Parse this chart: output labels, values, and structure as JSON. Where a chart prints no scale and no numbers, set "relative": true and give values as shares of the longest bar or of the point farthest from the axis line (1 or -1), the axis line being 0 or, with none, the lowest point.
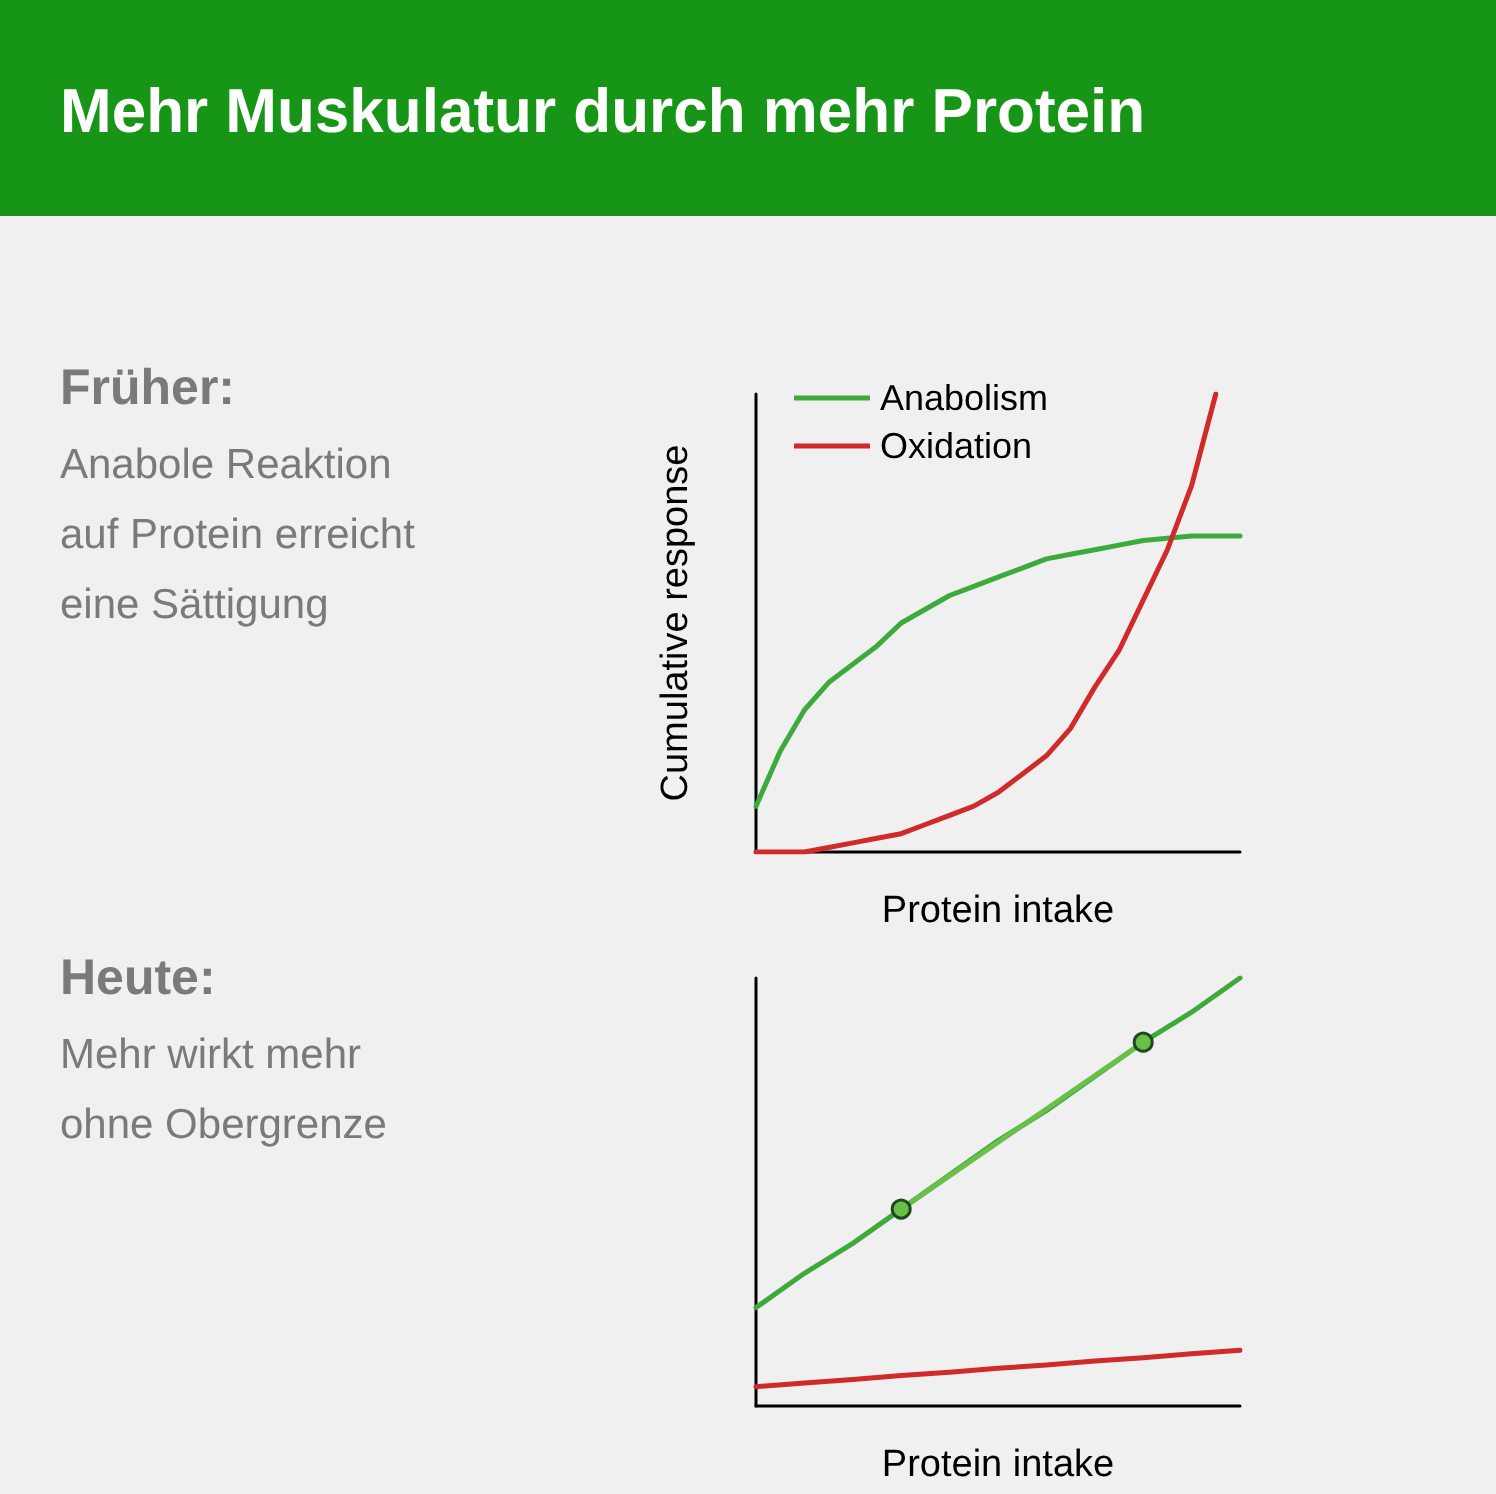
{
  "chart_data": [
    {
      "type": "line",
      "title": "Mehr Muskulatur durch mehr Protein",
      "annotations": [
        "Früher:",
        "Anabole Reaktion auf Protein erreicht eine Sättigung"
      ],
      "xlabel": "Protein intake",
      "ylabel": "Cumulative response",
      "relative": true,
      "legend": "top left",
      "marker": "none",
      "categories": [
        null,
        null,
        null,
        null,
        null,
        null,
        null,
        null,
        null,
        null,
        null,
        null,
        null,
        null,
        null,
        null,
        null,
        null,
        null,
        null,
        null
      ],
      "series": [
        {
          "name": "Anabolism",
          "color": "#3cab3c",
          "values": [
            0.1,
            0.22,
            0.31,
            0.37,
            0.41,
            0.45,
            0.5,
            0.53,
            0.56,
            0.58,
            0.6,
            0.62,
            0.64,
            0.65,
            0.66,
            0.67,
            0.68,
            0.685,
            0.69,
            0.69,
            0.69
          ]
        },
        {
          "name": "Oxidation",
          "color": "#d02a2a",
          "values": [
            0,
            0,
            0,
            0.01,
            0.02,
            0.03,
            0.04,
            0.06,
            0.08,
            0.1,
            0.13,
            0.17,
            0.21,
            0.27,
            0.36,
            0.44,
            0.55,
            0.66,
            0.8,
            1.0,
            null
          ]
        }
      ]
    },
    {
      "type": "line",
      "annotations": [
        "Heute:",
        "Mehr wirkt mehr ohne Obergrenze"
      ],
      "xlabel": "Protein intake",
      "relative": true,
      "marker": "none",
      "categories": [
        null,
        null,
        null,
        null,
        null,
        null,
        null,
        null,
        null,
        null,
        null
      ],
      "series": [
        {
          "color": "#3cab3c",
          "values": [
            0.23,
            0.31,
            0.38,
            0.46,
            0.54,
            0.62,
            0.69,
            0.77,
            0.85,
            0.92,
            1.0
          ]
        },
        {
          "color": "#d02a2a",
          "values": [
            0.045,
            0.054,
            0.062,
            0.071,
            0.079,
            0.088,
            0.096,
            0.105,
            0.113,
            0.122,
            0.13
          ]
        },
        {
          "marker": "circle",
          "color": "#6abf4b",
          "values": [
            null,
            null,
            null,
            0.46,
            null,
            null,
            null,
            null,
            0.85,
            null,
            null
          ]
        }
      ]
    }
  ]
}
